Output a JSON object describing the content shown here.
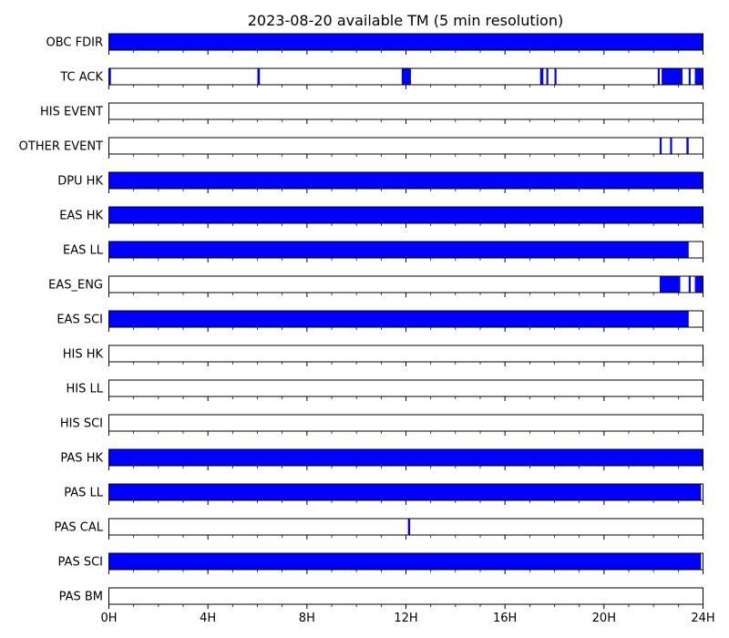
{
  "chart_data": {
    "type": "bar",
    "title": "2023-08-20 available TM (5 min resolution)",
    "xlabel": "",
    "ylabel": "",
    "xlim": [
      0,
      24
    ],
    "x_unit": "hours",
    "x_ticks": [
      0,
      4,
      8,
      12,
      16,
      20,
      24
    ],
    "x_tick_labels": [
      "0H",
      "4H",
      "8H",
      "12H",
      "16H",
      "20H",
      "24H"
    ],
    "minor_tick_step": 1,
    "grid": false,
    "legend": "none",
    "available_color": "#0000ff",
    "empty_color": "#ffffff",
    "rows": [
      {
        "label": "OBC FDIR",
        "intervals": [
          [
            0,
            24
          ]
        ]
      },
      {
        "label": "TC ACK",
        "intervals": [
          [
            0,
            0.08
          ],
          [
            6.0,
            6.1
          ],
          [
            11.83,
            12.2
          ],
          [
            17.42,
            17.55
          ],
          [
            17.67,
            17.75
          ],
          [
            18.0,
            18.08
          ],
          [
            22.17,
            22.25
          ],
          [
            22.33,
            23.17
          ],
          [
            23.42,
            23.5
          ],
          [
            23.67,
            24
          ]
        ]
      },
      {
        "label": "HIS EVENT",
        "intervals": []
      },
      {
        "label": "OTHER EVENT",
        "intervals": [
          [
            22.25,
            22.33
          ],
          [
            22.67,
            22.75
          ],
          [
            23.33,
            23.42
          ]
        ]
      },
      {
        "label": "DPU HK",
        "intervals": [
          [
            0,
            24
          ]
        ]
      },
      {
        "label": "EAS HK",
        "intervals": [
          [
            0,
            24
          ]
        ]
      },
      {
        "label": "EAS LL",
        "intervals": [
          [
            0,
            23.42
          ]
        ]
      },
      {
        "label": "EAS_ENG",
        "intervals": [
          [
            22.25,
            23.08
          ],
          [
            23.42,
            23.5
          ],
          [
            23.67,
            24
          ]
        ]
      },
      {
        "label": "EAS SCI",
        "intervals": [
          [
            0,
            23.42
          ]
        ]
      },
      {
        "label": "HIS HK",
        "intervals": []
      },
      {
        "label": "HIS LL",
        "intervals": []
      },
      {
        "label": "HIS SCI",
        "intervals": []
      },
      {
        "label": "PAS HK",
        "intervals": [
          [
            0,
            24
          ]
        ]
      },
      {
        "label": "PAS LL",
        "intervals": [
          [
            0,
            23.92
          ]
        ]
      },
      {
        "label": "PAS CAL",
        "intervals": [
          [
            12.08,
            12.17
          ]
        ]
      },
      {
        "label": "PAS SCI",
        "intervals": [
          [
            0,
            23.92
          ]
        ]
      },
      {
        "label": "PAS BM",
        "intervals": []
      }
    ]
  }
}
